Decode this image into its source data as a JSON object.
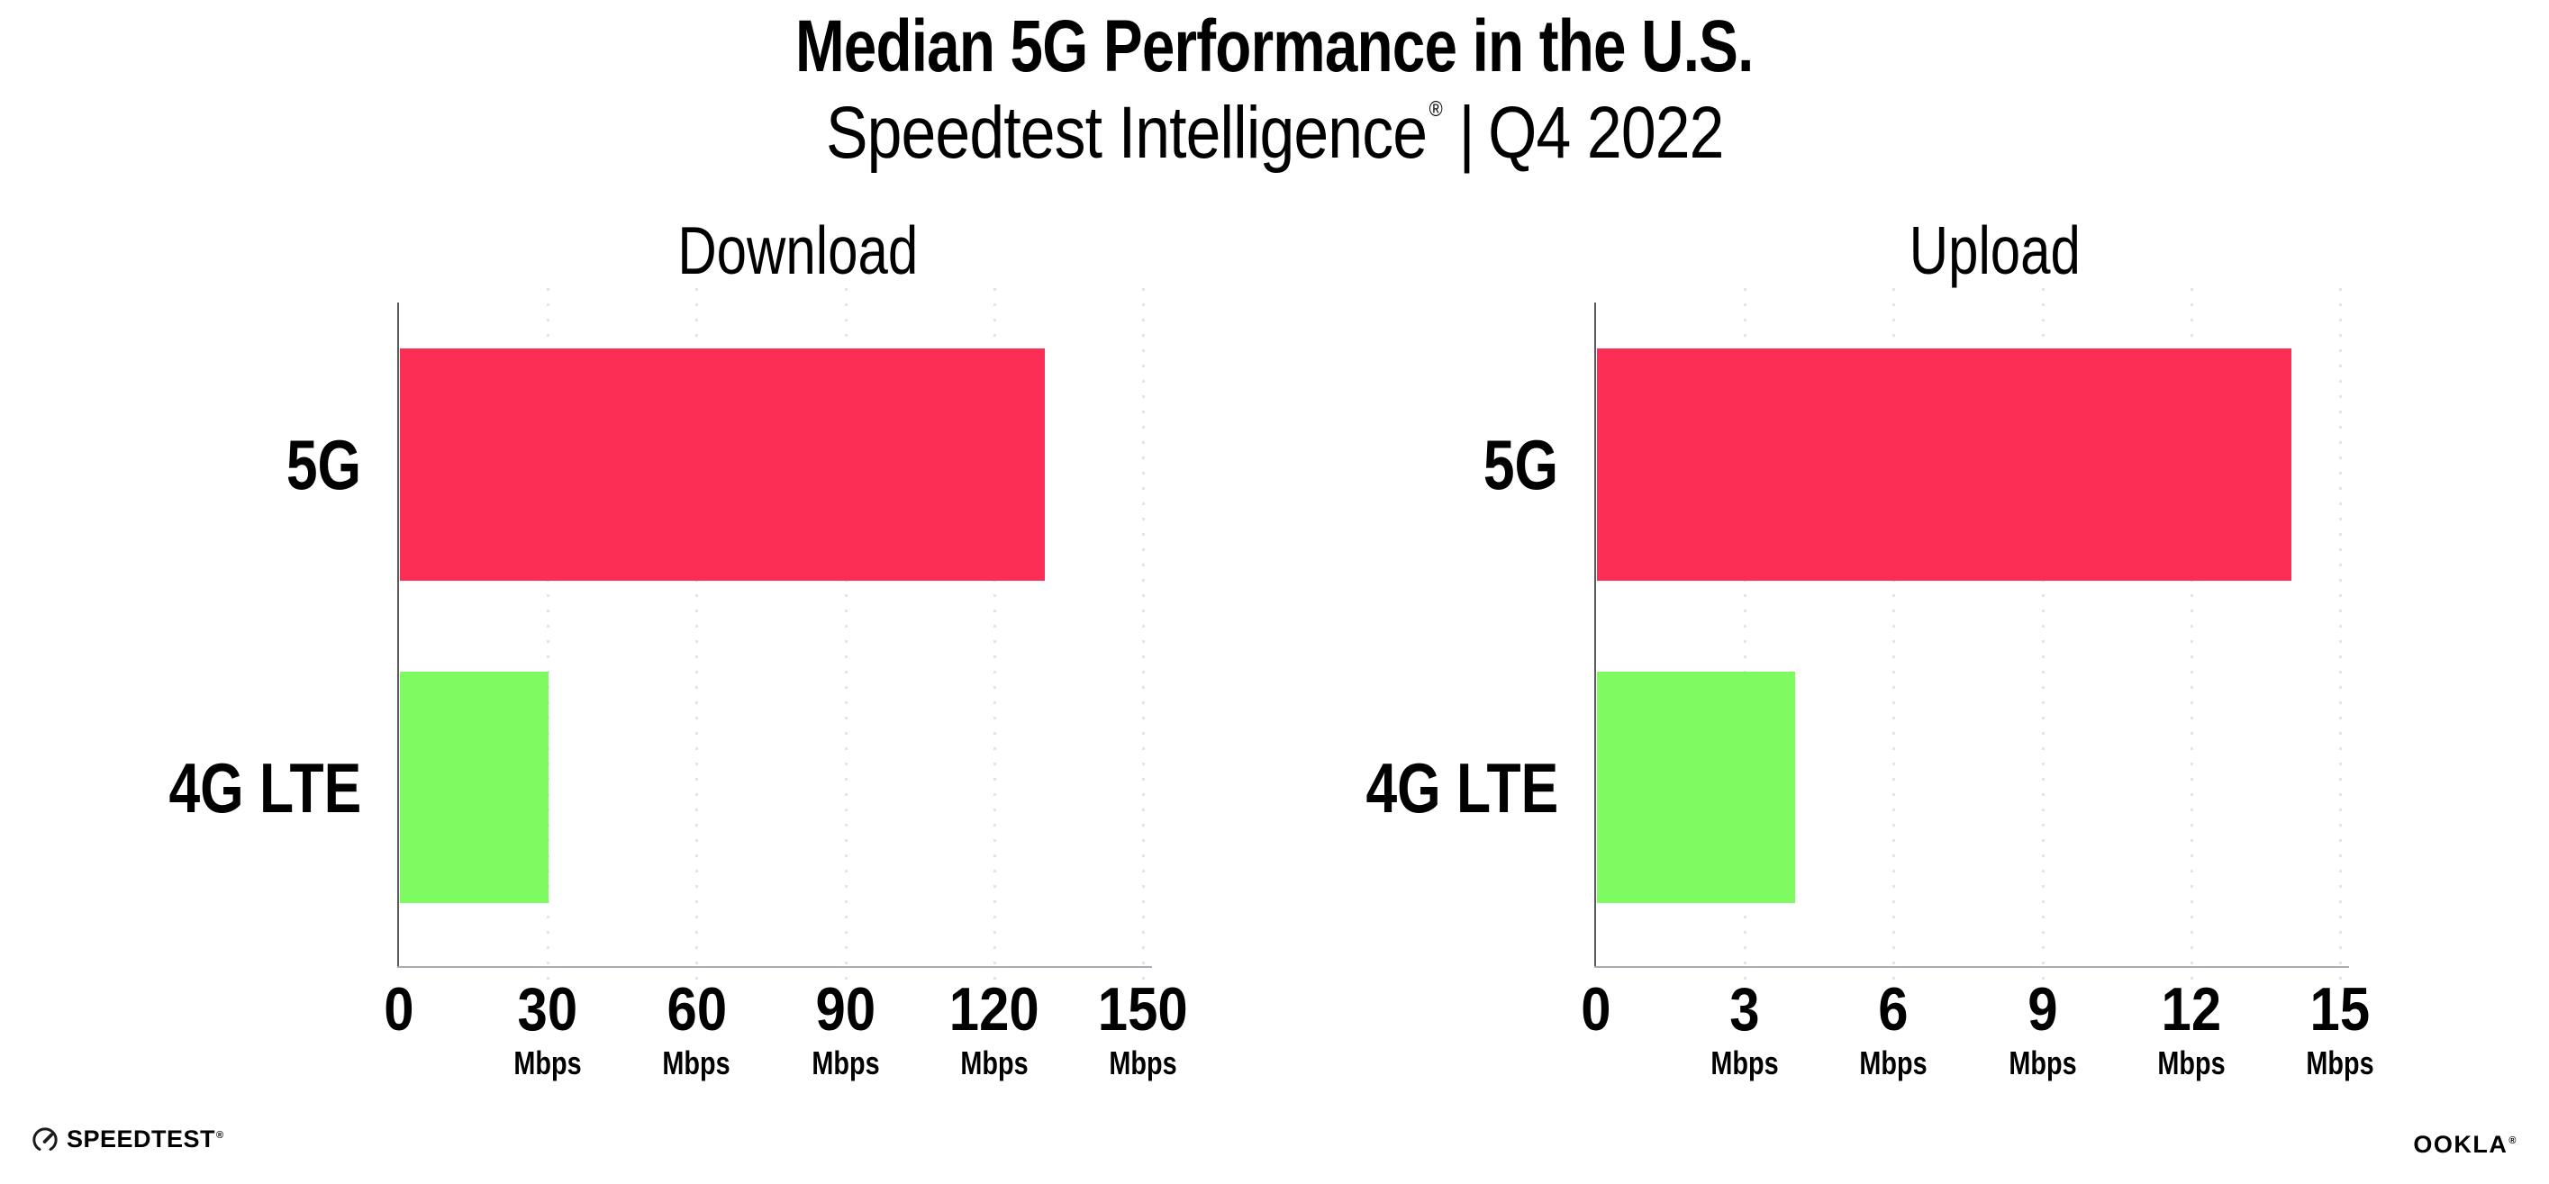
{
  "header": {
    "title": "Median 5G Performance in the U.S.",
    "subtitle": {
      "brand": "Speedtest Intelligence",
      "registered_mark": "®",
      "separator": "|",
      "period": "Q4 2022"
    }
  },
  "chart_data": [
    {
      "type": "bar",
      "orientation": "horizontal",
      "title": "Download",
      "categories": [
        "5G",
        "4G LTE"
      ],
      "values": [
        130,
        30
      ],
      "unit": "Mbps",
      "xlabel": "Mbps",
      "xlim": [
        0,
        150
      ],
      "xticks": [
        0,
        30,
        60,
        90,
        120,
        150
      ],
      "xtick_unit": "Mbps",
      "grid": "vertical-dotted",
      "legend": "none",
      "bar_colors": [
        "#FC2E56",
        "#7EFB61"
      ]
    },
    {
      "type": "bar",
      "orientation": "horizontal",
      "title": "Upload",
      "categories": [
        "5G",
        "4G LTE"
      ],
      "values": [
        14,
        4
      ],
      "unit": "Mbps",
      "xlabel": "Mbps",
      "xlim": [
        0,
        15
      ],
      "xticks": [
        0,
        3,
        6,
        9,
        12,
        15
      ],
      "xtick_unit": "Mbps",
      "grid": "vertical-dotted",
      "legend": "none",
      "bar_colors": [
        "#FC2E56",
        "#7EFB61"
      ]
    }
  ],
  "footer": {
    "speedtest_wordmark": "SPEEDTEST",
    "speedtest_registered_mark": "®",
    "ookla_wordmark": "OOKLA",
    "ookla_registered_mark": "®"
  },
  "colors": {
    "bar_5g": "#FC2E56",
    "bar_4g_lte": "#7EFB61",
    "gridline": "#E3E3EB",
    "y_axis_line": "#5A5A5A",
    "x_axis_line": "#ABABB3",
    "text": "#000000",
    "background": "#FFFFFF"
  }
}
